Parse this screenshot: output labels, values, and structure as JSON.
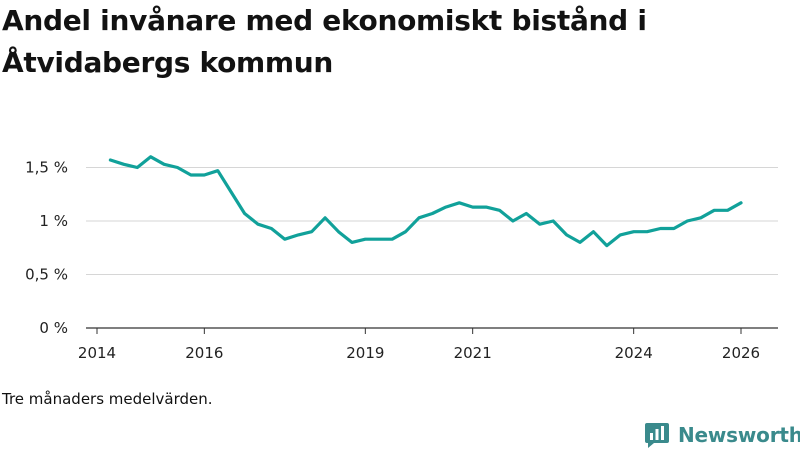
{
  "chart_data": {
    "type": "line",
    "title": "Andel invånare med ekonomiskt bistånd i Åtvidabergs kommun",
    "caption": "Tre månaders medelvärden.",
    "y_ticks": [
      "0 %",
      "0,5 %",
      "1 %",
      "1,5 %"
    ],
    "y_tick_values": [
      0,
      0.5,
      1,
      1.5
    ],
    "ylim": [
      0,
      1.6
    ],
    "x_ticks": [
      "2014",
      "2016",
      "2019",
      "2021",
      "2024",
      "2026"
    ],
    "x_tick_values": [
      2014,
      2016,
      2019,
      2021,
      2024,
      2026
    ],
    "xlim": [
      2013.92,
      2026.75
    ],
    "series": [
      {
        "name": "Andel invånare med ekonomiskt bistånd",
        "color": "#11a19a",
        "x": [
          2014.25,
          2014.5,
          2014.75,
          2015.0,
          2015.25,
          2015.5,
          2015.75,
          2016.0,
          2016.25,
          2016.5,
          2016.75,
          2017.0,
          2017.25,
          2017.5,
          2017.75,
          2018.0,
          2018.25,
          2018.5,
          2018.75,
          2019.0,
          2019.25,
          2019.5,
          2019.75,
          2020.0,
          2020.25,
          2020.5,
          2020.75,
          2021.0,
          2021.25,
          2021.5,
          2021.75,
          2022.0,
          2022.25,
          2022.5,
          2022.75,
          2023.0,
          2023.25,
          2023.5,
          2023.75,
          2024.0,
          2024.25,
          2024.5,
          2024.75,
          2025.0,
          2025.25,
          2025.5,
          2025.75,
          2026.0
        ],
        "values": [
          1.57,
          1.53,
          1.5,
          1.6,
          1.53,
          1.5,
          1.43,
          1.43,
          1.47,
          1.27,
          1.07,
          0.97,
          0.93,
          0.83,
          0.87,
          0.9,
          1.03,
          0.9,
          0.8,
          0.83,
          0.83,
          0.83,
          0.9,
          1.03,
          1.07,
          1.13,
          1.17,
          1.13,
          1.13,
          1.1,
          1.0,
          1.07,
          0.97,
          1.0,
          0.87,
          0.8,
          0.9,
          0.77,
          0.87,
          0.9,
          0.9,
          0.93,
          0.93,
          1.0,
          1.03,
          1.1,
          1.1,
          1.17
        ]
      }
    ]
  },
  "brand": {
    "name": "Newsworthy",
    "color": "#3a8a8c",
    "icon": "newsworthy-logo-icon"
  }
}
